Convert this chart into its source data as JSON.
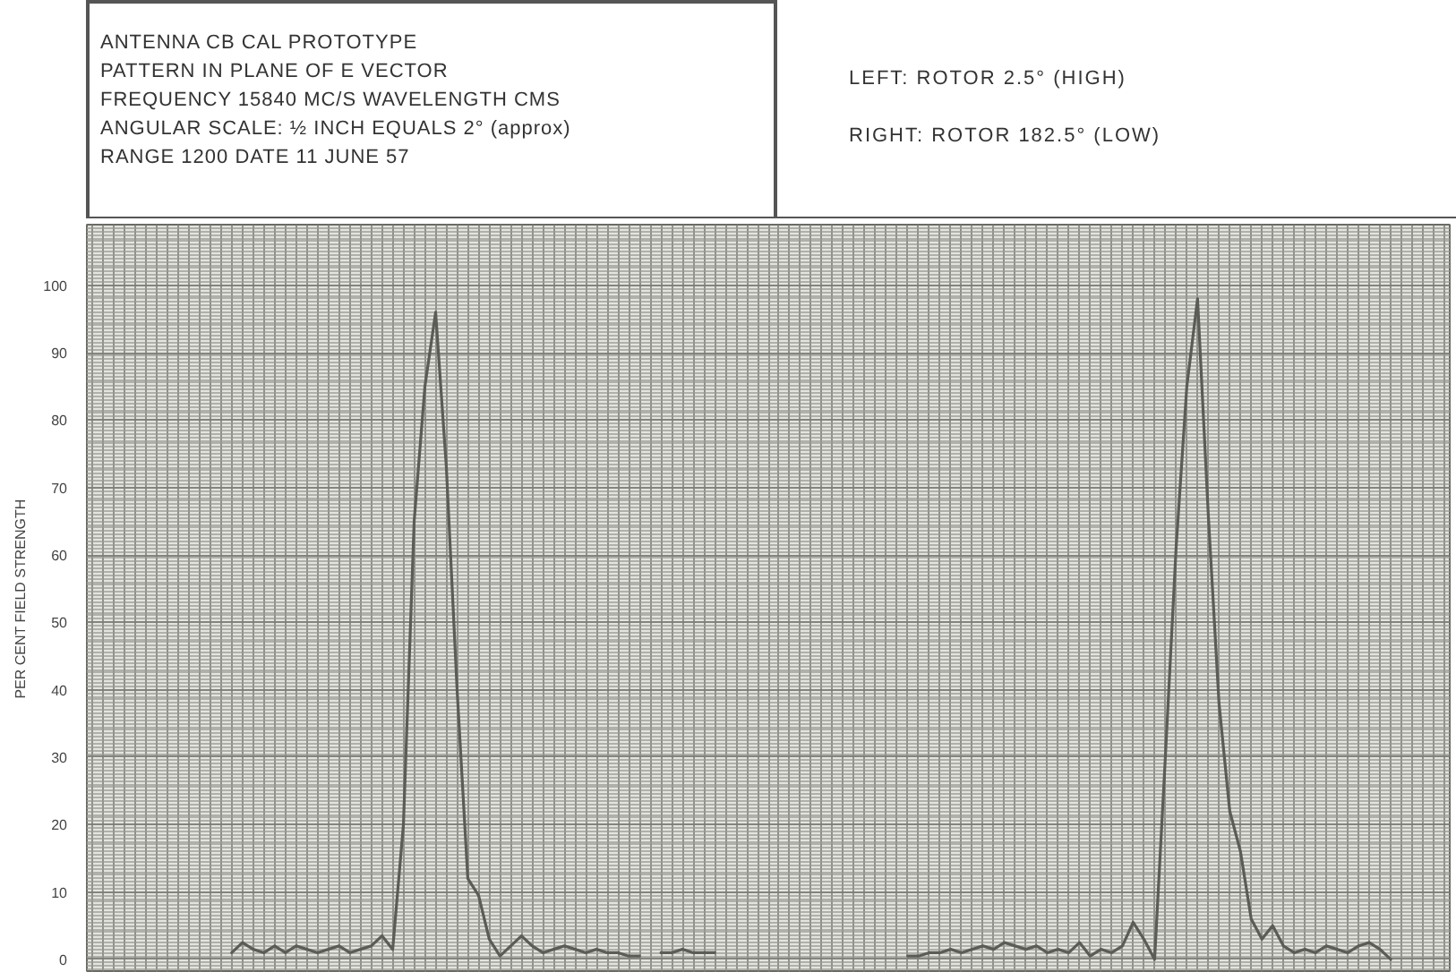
{
  "chart_data": {
    "type": "line",
    "ylabel": "PER CENT FIELD STRENGTH",
    "annotations": [
      "ANTENNA CB CAL PROTOTYPE",
      "PATTERN IN PLANE OF E VECTOR",
      "FREQUENCY 15840 MC/S WAVELENGTH CMS",
      "ANGULAR SCALE: ½ INCH EQUALS 2° (approx)",
      "RANGE 1200 DATE 11 JUNE 57",
      "LEFT: ROTOR 2.5° (HIGH)",
      "RIGHT: ROTOR 182.5° (LOW)"
    ],
    "categories": [
      null,
      null,
      null,
      null,
      null,
      null,
      null,
      null,
      null,
      null,
      null,
      null,
      null,
      null,
      null,
      null,
      null,
      null,
      null,
      null,
      null,
      null,
      null,
      null,
      null,
      null,
      null,
      null,
      null,
      null,
      null,
      null,
      null,
      null,
      null,
      null,
      null,
      null,
      null,
      null,
      null,
      null,
      null,
      null,
      null,
      null,
      null,
      null,
      null,
      null,
      null,
      null,
      null,
      null,
      null,
      null,
      null,
      null,
      null,
      null,
      null,
      null,
      null,
      null,
      null,
      null,
      null,
      null,
      null,
      null,
      null,
      null,
      null,
      null,
      null,
      null,
      null,
      null,
      null,
      null,
      null,
      null,
      null,
      null,
      null,
      null,
      null,
      null,
      null,
      null,
      null,
      null,
      null,
      null,
      null,
      null,
      null,
      null,
      null,
      null,
      null,
      null,
      null,
      null,
      null,
      null,
      null,
      null,
      null,
      null,
      null,
      null,
      null,
      null,
      null,
      null,
      null,
      null,
      null,
      null,
      null,
      null,
      null,
      null,
      null,
      null,
      null
    ],
    "series": [
      {
        "color": "#5a5c55",
        "values": [
          null,
          null,
          null,
          null,
          null,
          null,
          null,
          null,
          null,
          null,
          null,
          null,
          null,
          1,
          2.5,
          1.5,
          1,
          2,
          1,
          2,
          1.5,
          1,
          1.5,
          2,
          1,
          1.5,
          2,
          3.5,
          1.5,
          20,
          65,
          85,
          96,
          73,
          40,
          12,
          9.5,
          3,
          0.5,
          2,
          3.5,
          2,
          1,
          1.5,
          2,
          1.5,
          1,
          1.5,
          1,
          1,
          0.5,
          0.5,
          null,
          1,
          1,
          1.5,
          1,
          1,
          1,
          null,
          null,
          null,
          null,
          null,
          null,
          null,
          null,
          null,
          null,
          null,
          null,
          null,
          null,
          null,
          null,
          null,
          null,
          null,
          null,
          null,
          null,
          null,
          null,
          null,
          null,
          null,
          null,
          null,
          null,
          null,
          null,
          null,
          null,
          null,
          null,
          null,
          null,
          null,
          null,
          null,
          null,
          null,
          null,
          null,
          null,
          null,
          null,
          null,
          null,
          null,
          null,
          null,
          null,
          null,
          null,
          null,
          null,
          null,
          null,
          null,
          null,
          null,
          null,
          null,
          null,
          null,
          null
        ]
      },
      {
        "color": "#5a5c55",
        "values": [
          null,
          null,
          null,
          null,
          null,
          null,
          null,
          null,
          null,
          null,
          null,
          null,
          null,
          null,
          null,
          null,
          null,
          null,
          null,
          null,
          null,
          null,
          null,
          null,
          null,
          null,
          null,
          null,
          null,
          null,
          null,
          null,
          null,
          null,
          null,
          null,
          null,
          null,
          null,
          null,
          null,
          null,
          null,
          null,
          null,
          null,
          null,
          null,
          null,
          null,
          null,
          null,
          null,
          null,
          null,
          null,
          null,
          null,
          null,
          null,
          null,
          null,
          null,
          null,
          null,
          null,
          null,
          null,
          null,
          null,
          null,
          null,
          null,
          null,
          null,
          null,
          0.5,
          0.5,
          1,
          1,
          1.5,
          1,
          1.5,
          2,
          1.5,
          2.5,
          2,
          1.5,
          2,
          1,
          1.5,
          1,
          2.5,
          0.5,
          1.5,
          1,
          2,
          5.5,
          3,
          0,
          30,
          61,
          85,
          98,
          66,
          38,
          22,
          16,
          6,
          3,
          5,
          2,
          1,
          1.5,
          1,
          2,
          1.5,
          1,
          2,
          2.5,
          1.5,
          0,
          null,
          null,
          null,
          null,
          null
        ]
      }
    ],
    "ylim": [
      -2,
      109
    ],
    "yticks": [
      0,
      10,
      20,
      30,
      40,
      50,
      60,
      70,
      80,
      90,
      100
    ],
    "grid": true,
    "tick_labels": "y"
  }
}
